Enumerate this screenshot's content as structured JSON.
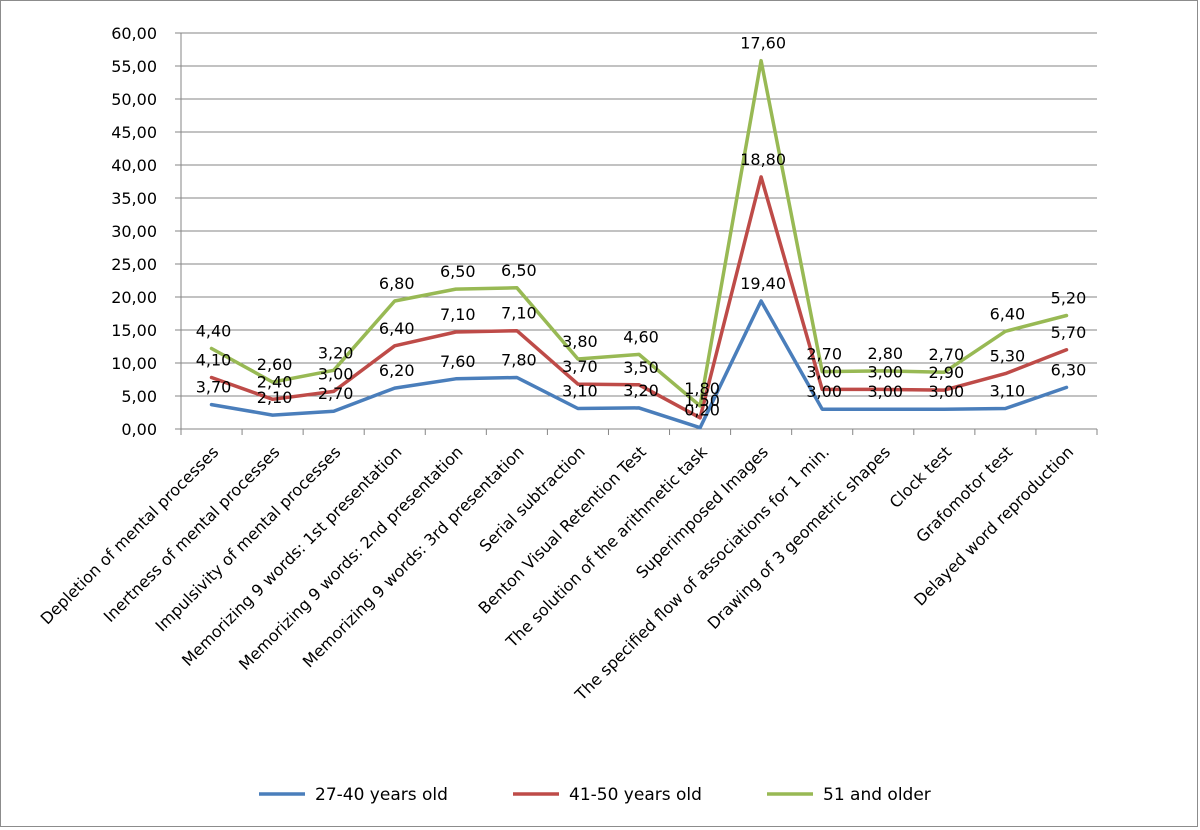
{
  "chart_data": {
    "type": "line",
    "stacked": true,
    "categories": [
      "Depletion of mental processes",
      "Inertness of mental processes",
      "Impulsivity of mental processes",
      "Memorizing 9 words: 1st presentation",
      "Memorizing 9 words: 2nd presentation",
      "Memorizing 9 words: 3rd presentation",
      "Serial subtraction",
      "Benton Visual Retention Test",
      "The solution of the arithmetic task",
      "Superimposed Images",
      "The specified flow of associations for 1 min.",
      "Drawing of 3 geometric shapes",
      "Clock test",
      "Grafomotor test",
      "Delayed word reproduction"
    ],
    "series": [
      {
        "name": "27-40 years old",
        "color": "#4a7ebb",
        "values": [
          3.7,
          2.1,
          2.7,
          6.2,
          7.6,
          7.8,
          3.1,
          3.2,
          0.2,
          19.4,
          3.0,
          3.0,
          3.0,
          3.1,
          6.3
        ],
        "labels": [
          "3,70",
          "2,10",
          "2,70",
          "6,20",
          "7,60",
          "7,80",
          "3,10",
          "3,20",
          "0,20",
          "19,40",
          "3,00",
          "3,00",
          "3,00",
          "3,10",
          "6,30"
        ]
      },
      {
        "name": "41-50 years old",
        "color": "#be4b48",
        "values": [
          4.1,
          2.4,
          3.0,
          6.4,
          7.1,
          7.1,
          3.7,
          3.5,
          1.5,
          18.8,
          3.0,
          3.0,
          2.9,
          5.3,
          5.7
        ],
        "labels": [
          "4,10",
          "2,40",
          "3,00",
          "6,40",
          "7,10",
          "7,10",
          "3,70",
          "3,50",
          "1,50",
          "18,80",
          "3,00",
          "3,00",
          "2,90",
          "5,30",
          "5,70"
        ]
      },
      {
        "name": "51 and older",
        "color": "#98b954",
        "values": [
          4.4,
          2.6,
          3.2,
          6.8,
          6.5,
          6.5,
          3.8,
          4.6,
          1.8,
          17.6,
          2.7,
          2.8,
          2.7,
          6.4,
          5.2
        ],
        "labels": [
          "4,40",
          "2,60",
          "3,20",
          "6,80",
          "6,50",
          "6,50",
          "3,80",
          "4,60",
          "1,80",
          "17,60",
          "2,70",
          "2,80",
          "2,70",
          "6,40",
          "5,20"
        ]
      }
    ],
    "yticks": [
      "0,00",
      "5,00",
      "10,00",
      "15,00",
      "20,00",
      "25,00",
      "30,00",
      "35,00",
      "40,00",
      "45,00",
      "50,00",
      "55,00",
      "60,00"
    ],
    "ylim": [
      0,
      60
    ],
    "grid": true,
    "legend": "bottom",
    "title": "",
    "xlabel": "",
    "ylabel": ""
  }
}
